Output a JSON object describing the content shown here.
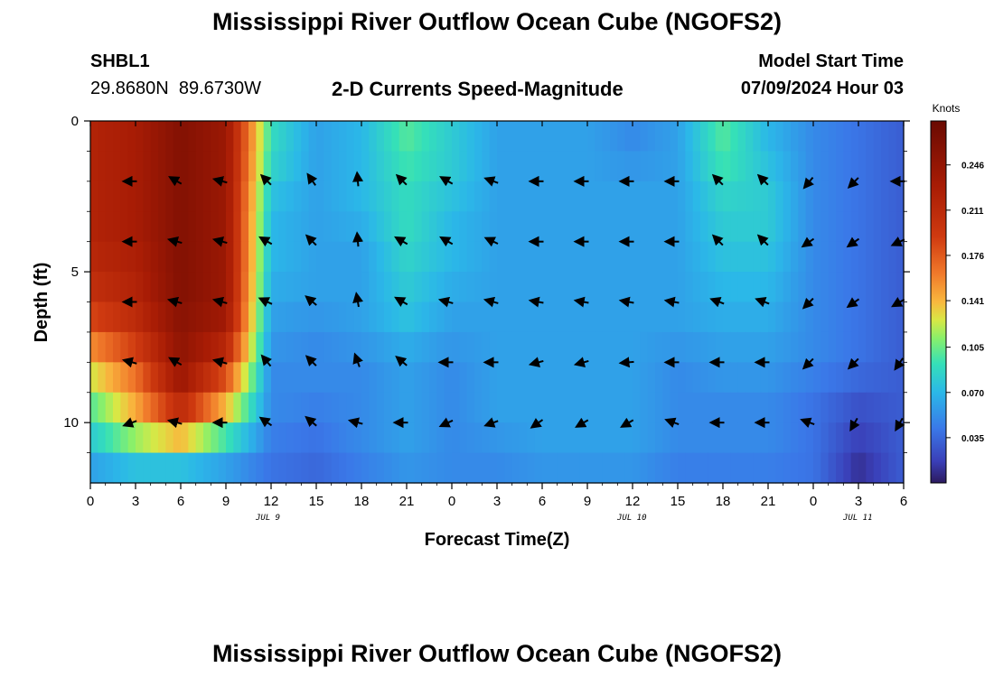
{
  "header": {
    "title": "Mississippi River Outflow Ocean Cube (NGOFS2)",
    "station_id": "SHBL1",
    "station_coords": "29.8680N  89.6730W",
    "subtitle": "2-D Currents Speed-Magnitude",
    "model_start_label": "Model Start Time",
    "model_start_value": "07/09/2024 Hour 03",
    "footer_title": "Mississippi River Outflow Ocean Cube (NGOFS2)"
  },
  "chart_data": {
    "type": "heatmap",
    "title": "2-D Currents Speed-Magnitude",
    "xlabel": "Forecast Time(Z)",
    "ylabel": "Depth (ft)",
    "x_range": [
      0,
      54
    ],
    "y_range": [
      0,
      12
    ],
    "y_inverted": true,
    "x_ticks": [
      0,
      3,
      6,
      9,
      12,
      15,
      18,
      21,
      24,
      27,
      30,
      33,
      36,
      39,
      42,
      45,
      48,
      51,
      54
    ],
    "x_tick_labels": [
      "0",
      "3",
      "6",
      "9",
      "12",
      "15",
      "18",
      "21",
      "0",
      "3",
      "6",
      "9",
      "12",
      "15",
      "18",
      "21",
      "0",
      "3",
      "6"
    ],
    "y_ticks": [
      0,
      5,
      10
    ],
    "y_tick_labels": [
      "0",
      "5",
      "10"
    ],
    "date_labels": [
      {
        "hour": 12,
        "label": "JUL 9"
      },
      {
        "hour": 36,
        "label": "JUL 10"
      },
      {
        "hour": 51,
        "label": "JUL 11"
      }
    ],
    "colorbar": {
      "units": "Knots",
      "min": 0.0,
      "max": 0.28,
      "ticks": [
        0.035,
        0.07,
        0.105,
        0.141,
        0.176,
        0.211,
        0.246
      ],
      "tick_labels": [
        "0.035",
        "0.070",
        "0.105",
        "0.141",
        "0.176",
        "0.211",
        "0.246"
      ]
    },
    "rows_depth_ft": [
      0,
      1,
      2,
      3,
      4,
      5,
      6,
      7,
      8,
      9,
      10,
      11,
      12
    ],
    "columns_hours": [
      0,
      3,
      6,
      9,
      12,
      15,
      18,
      21,
      24,
      27,
      30,
      33,
      36,
      39,
      42,
      45,
      48,
      51,
      54
    ],
    "speed_knots": [
      [
        0.22,
        0.23,
        0.26,
        0.24,
        0.09,
        0.06,
        0.07,
        0.1,
        0.08,
        0.06,
        0.06,
        0.06,
        0.05,
        0.06,
        0.1,
        0.07,
        0.05,
        0.04,
        0.03
      ],
      [
        0.22,
        0.23,
        0.26,
        0.24,
        0.09,
        0.06,
        0.07,
        0.1,
        0.08,
        0.06,
        0.06,
        0.06,
        0.05,
        0.06,
        0.1,
        0.07,
        0.05,
        0.04,
        0.03
      ],
      [
        0.22,
        0.23,
        0.26,
        0.24,
        0.08,
        0.06,
        0.07,
        0.09,
        0.08,
        0.06,
        0.06,
        0.06,
        0.06,
        0.06,
        0.09,
        0.08,
        0.05,
        0.04,
        0.03
      ],
      [
        0.22,
        0.23,
        0.26,
        0.24,
        0.07,
        0.06,
        0.07,
        0.09,
        0.07,
        0.06,
        0.06,
        0.06,
        0.06,
        0.06,
        0.08,
        0.08,
        0.05,
        0.04,
        0.03
      ],
      [
        0.22,
        0.23,
        0.26,
        0.24,
        0.07,
        0.06,
        0.06,
        0.09,
        0.07,
        0.06,
        0.06,
        0.06,
        0.06,
        0.06,
        0.08,
        0.08,
        0.05,
        0.04,
        0.03
      ],
      [
        0.21,
        0.22,
        0.26,
        0.24,
        0.07,
        0.06,
        0.06,
        0.08,
        0.07,
        0.06,
        0.06,
        0.06,
        0.06,
        0.06,
        0.07,
        0.07,
        0.05,
        0.04,
        0.03
      ],
      [
        0.2,
        0.22,
        0.26,
        0.24,
        0.06,
        0.06,
        0.06,
        0.08,
        0.06,
        0.06,
        0.06,
        0.06,
        0.06,
        0.06,
        0.07,
        0.07,
        0.05,
        0.04,
        0.03
      ],
      [
        0.17,
        0.2,
        0.25,
        0.23,
        0.06,
        0.05,
        0.06,
        0.07,
        0.06,
        0.06,
        0.06,
        0.06,
        0.06,
        0.06,
        0.06,
        0.06,
        0.05,
        0.04,
        0.03
      ],
      [
        0.14,
        0.18,
        0.25,
        0.2,
        0.05,
        0.05,
        0.05,
        0.06,
        0.05,
        0.06,
        0.06,
        0.06,
        0.06,
        0.05,
        0.06,
        0.06,
        0.05,
        0.04,
        0.03
      ],
      [
        0.11,
        0.15,
        0.23,
        0.16,
        0.05,
        0.05,
        0.05,
        0.06,
        0.05,
        0.06,
        0.06,
        0.06,
        0.06,
        0.05,
        0.05,
        0.05,
        0.04,
        0.03,
        0.03
      ],
      [
        0.09,
        0.14,
        0.19,
        0.12,
        0.05,
        0.04,
        0.05,
        0.06,
        0.05,
        0.06,
        0.06,
        0.06,
        0.06,
        0.05,
        0.05,
        0.05,
        0.04,
        0.02,
        0.03
      ],
      [
        0.07,
        0.09,
        0.09,
        0.07,
        0.04,
        0.04,
        0.05,
        0.06,
        0.05,
        0.05,
        0.06,
        0.06,
        0.06,
        0.05,
        0.05,
        0.05,
        0.04,
        0.015,
        0.03
      ],
      [
        0.05,
        0.06,
        0.06,
        0.05,
        0.04,
        0.03,
        0.04,
        0.05,
        0.05,
        0.05,
        0.05,
        0.05,
        0.05,
        0.04,
        0.04,
        0.04,
        0.04,
        0.005,
        0.03
      ]
    ],
    "vector_hours": [
      3,
      6,
      9,
      12,
      15,
      18,
      21,
      24,
      27,
      30,
      33,
      36,
      39,
      42,
      45,
      48,
      51,
      54
    ],
    "vector_depths_ft": [
      2,
      4,
      6,
      8,
      10
    ],
    "vector_direction_deg": [
      [
        180,
        150,
        165,
        135,
        125,
        95,
        135,
        150,
        160,
        180,
        180,
        180,
        180,
        135,
        135,
        230,
        225,
        180
      ],
      [
        180,
        165,
        165,
        150,
        135,
        95,
        150,
        150,
        155,
        180,
        180,
        180,
        180,
        135,
        135,
        215,
        215,
        205
      ],
      [
        180,
        165,
        165,
        155,
        140,
        100,
        150,
        165,
        165,
        170,
        170,
        170,
        170,
        160,
        160,
        225,
        215,
        210
      ],
      [
        165,
        150,
        165,
        130,
        135,
        110,
        140,
        180,
        180,
        195,
        195,
        185,
        180,
        180,
        180,
        225,
        225,
        235
      ],
      [
        200,
        165,
        180,
        145,
        140,
        165,
        180,
        205,
        200,
        215,
        210,
        210,
        160,
        180,
        180,
        160,
        240,
        240
      ]
    ]
  }
}
